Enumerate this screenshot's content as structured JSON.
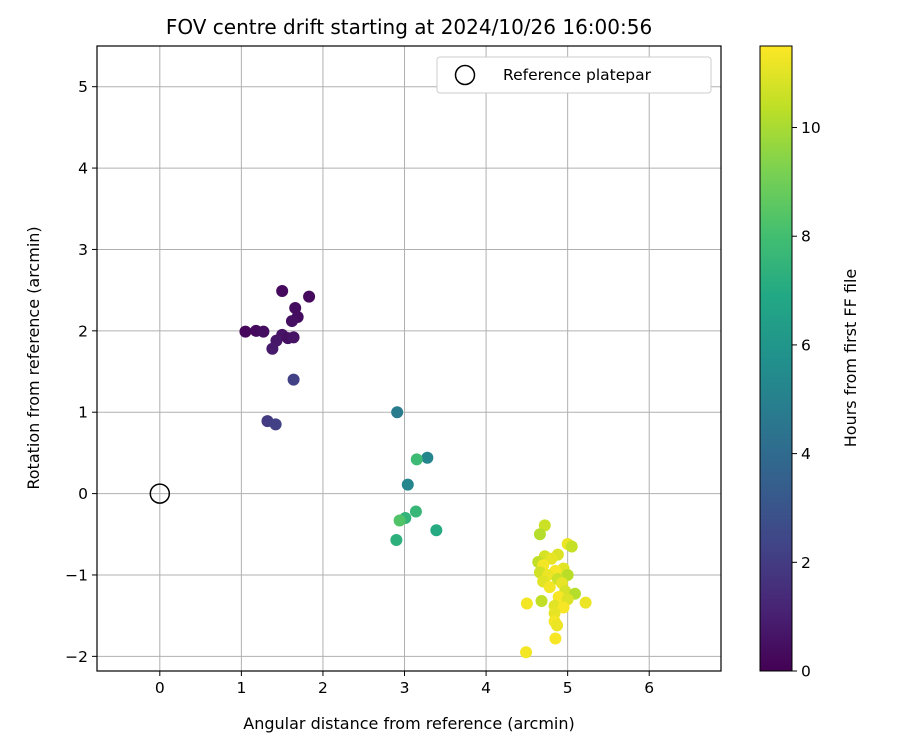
{
  "chart_data": {
    "type": "scatter",
    "title": "FOV centre drift starting at 2024/10/26 16:00:56",
    "xlabel": "Angular distance from reference (arcmin)",
    "ylabel": "Rotation from reference (arcmin)",
    "xlim": [
      -0.77,
      6.88
    ],
    "ylim": [
      -2.18,
      5.5
    ],
    "xticks": [
      0,
      1,
      2,
      3,
      4,
      5,
      6
    ],
    "yticks": [
      -2,
      -1,
      0,
      1,
      2,
      3,
      4,
      5
    ],
    "grid": true,
    "legend": {
      "entries": [
        "Reference platepar"
      ],
      "placement": "top-right"
    },
    "reference_point": {
      "x": 0,
      "y": 0,
      "label": "Reference platepar"
    },
    "colorbar": {
      "label": "Hours from first FF file",
      "colormap": "viridis",
      "range": [
        0,
        11.5
      ],
      "ticks": [
        0,
        2,
        4,
        6,
        8,
        10
      ]
    },
    "series": [
      {
        "color_by": "hours",
        "points": [
          {
            "x": 1.5,
            "y": 2.49,
            "c": 0.3
          },
          {
            "x": 1.83,
            "y": 2.42,
            "c": 0.3
          },
          {
            "x": 1.66,
            "y": 2.28,
            "c": 0.4
          },
          {
            "x": 1.69,
            "y": 2.17,
            "c": 0.4
          },
          {
            "x": 1.62,
            "y": 2.12,
            "c": 0.5
          },
          {
            "x": 1.05,
            "y": 1.99,
            "c": 0.2
          },
          {
            "x": 1.18,
            "y": 2.0,
            "c": 0.3
          },
          {
            "x": 1.27,
            "y": 1.99,
            "c": 0.4
          },
          {
            "x": 1.5,
            "y": 1.95,
            "c": 0.6
          },
          {
            "x": 1.43,
            "y": 1.88,
            "c": 0.7
          },
          {
            "x": 1.57,
            "y": 1.91,
            "c": 0.5
          },
          {
            "x": 1.64,
            "y": 1.92,
            "c": 0.6
          },
          {
            "x": 1.38,
            "y": 1.78,
            "c": 0.8
          },
          {
            "x": 1.64,
            "y": 1.4,
            "c": 2.2
          },
          {
            "x": 1.32,
            "y": 0.89,
            "c": 2.0
          },
          {
            "x": 1.42,
            "y": 0.85,
            "c": 2.2
          },
          {
            "x": 2.91,
            "y": 1.0,
            "c": 4.8
          },
          {
            "x": 3.28,
            "y": 0.44,
            "c": 5.2
          },
          {
            "x": 3.15,
            "y": 0.42,
            "c": 7.8
          },
          {
            "x": 3.04,
            "y": 0.11,
            "c": 5.3
          },
          {
            "x": 3.14,
            "y": -0.22,
            "c": 7.6
          },
          {
            "x": 3.01,
            "y": -0.3,
            "c": 7.5
          },
          {
            "x": 2.94,
            "y": -0.33,
            "c": 8.3
          },
          {
            "x": 3.39,
            "y": -0.45,
            "c": 7.0
          },
          {
            "x": 2.9,
            "y": -0.57,
            "c": 7.3
          },
          {
            "x": 4.72,
            "y": -0.39,
            "c": 10.6
          },
          {
            "x": 4.66,
            "y": -0.5,
            "c": 10.2
          },
          {
            "x": 5.0,
            "y": -0.62,
            "c": 11.2
          },
          {
            "x": 5.05,
            "y": -0.65,
            "c": 10.5
          },
          {
            "x": 4.72,
            "y": -0.77,
            "c": 10.8
          },
          {
            "x": 4.88,
            "y": -0.75,
            "c": 10.9
          },
          {
            "x": 4.8,
            "y": -0.8,
            "c": 11.1
          },
          {
            "x": 4.64,
            "y": -0.84,
            "c": 10.4
          },
          {
            "x": 4.7,
            "y": -0.88,
            "c": 11.3
          },
          {
            "x": 4.95,
            "y": -0.92,
            "c": 11.0
          },
          {
            "x": 4.85,
            "y": -0.95,
            "c": 11.4
          },
          {
            "x": 4.66,
            "y": -0.97,
            "c": 10.7
          },
          {
            "x": 4.76,
            "y": -1.0,
            "c": 11.2
          },
          {
            "x": 5.0,
            "y": -1.0,
            "c": 10.3
          },
          {
            "x": 4.88,
            "y": -1.05,
            "c": 10.6
          },
          {
            "x": 4.7,
            "y": -1.08,
            "c": 11.0
          },
          {
            "x": 4.93,
            "y": -1.1,
            "c": 11.1
          },
          {
            "x": 4.78,
            "y": -1.15,
            "c": 11.3
          },
          {
            "x": 4.97,
            "y": -1.2,
            "c": 10.8
          },
          {
            "x": 5.09,
            "y": -1.23,
            "c": 10.2
          },
          {
            "x": 4.89,
            "y": -1.27,
            "c": 11.4
          },
          {
            "x": 5.0,
            "y": -1.3,
            "c": 10.9
          },
          {
            "x": 4.68,
            "y": -1.32,
            "c": 10.4
          },
          {
            "x": 5.22,
            "y": -1.34,
            "c": 11.2
          },
          {
            "x": 4.5,
            "y": -1.35,
            "c": 11.3
          },
          {
            "x": 4.84,
            "y": -1.38,
            "c": 11.0
          },
          {
            "x": 4.95,
            "y": -1.4,
            "c": 11.4
          },
          {
            "x": 4.84,
            "y": -1.47,
            "c": 11.1
          },
          {
            "x": 4.84,
            "y": -1.57,
            "c": 11.3
          },
          {
            "x": 4.87,
            "y": -1.62,
            "c": 11.2
          },
          {
            "x": 4.85,
            "y": -1.78,
            "c": 11.4
          },
          {
            "x": 4.49,
            "y": -1.95,
            "c": 11.3
          }
        ]
      }
    ]
  }
}
